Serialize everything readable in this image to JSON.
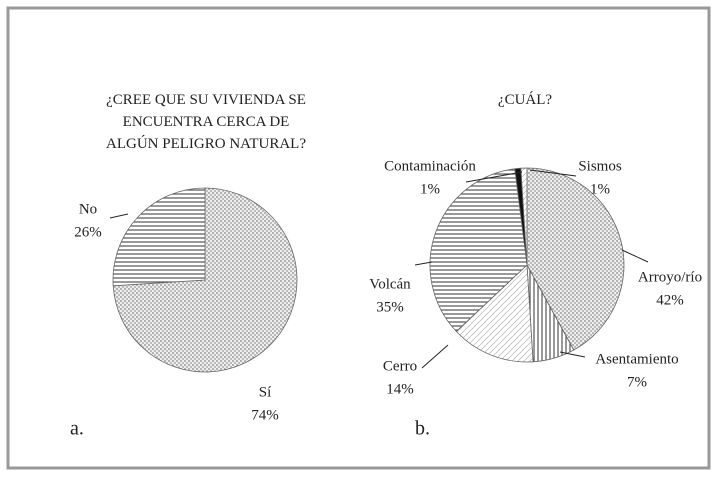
{
  "chart_data": [
    {
      "type": "pie",
      "title": "¿CREE QUE SU VIVIENDA SE ENCUENTRA CERCA DE ALGÚN PELIGRO NATURAL?",
      "categories": [
        "Sí",
        "No"
      ],
      "values": [
        74,
        26
      ],
      "value_labels": [
        "74%",
        "26%"
      ],
      "panel_label": "a."
    },
    {
      "type": "pie",
      "title": "¿CUÁL?",
      "categories": [
        "Arroyo/río",
        "Asentamiento",
        "Cerro",
        "Volcán",
        "Contaminación",
        "Sismos"
      ],
      "values": [
        42,
        7,
        14,
        35,
        1,
        1
      ],
      "value_labels": [
        "42%",
        "7%",
        "14%",
        "35%",
        "1%",
        "1%"
      ],
      "panel_label": "b."
    }
  ]
}
